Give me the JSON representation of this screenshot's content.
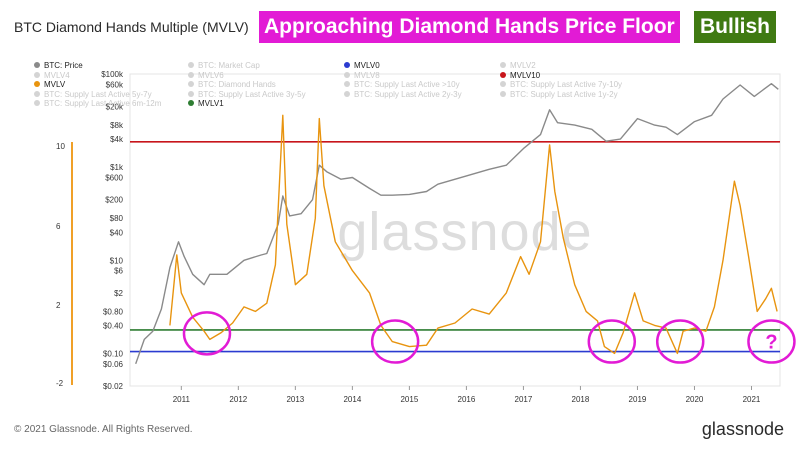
{
  "header": {
    "title": "BTC Diamond Hands Multiple (MVLV)",
    "headline": "Approaching Diamond Hands Price Floor",
    "verdict": "Bullish",
    "headline_color": "#e21bd5",
    "verdict_color": "#3f7a12"
  },
  "footer": {
    "copyright": "© 2021 Glassnode. All Rights Reserved.",
    "brand": "glassnode"
  },
  "chart_data": {
    "type": "line",
    "watermark": "glassnode",
    "x_range": [
      2010.6,
      2022.0
    ],
    "x_ticks": [
      "2011",
      "2012",
      "2013",
      "2014",
      "2015",
      "2016",
      "2017",
      "2018",
      "2019",
      "2020",
      "2021"
    ],
    "y_price_ticks": [
      "$100k",
      "$60k",
      "$20k",
      "$8k",
      "$4k",
      "$1k",
      "$600",
      "$200",
      "$80",
      "$40",
      "$10",
      "$6",
      "$2",
      "$0.80",
      "$0.40",
      "$0.10",
      "$0.06",
      "$0.02"
    ],
    "y_price_range": [
      0.02,
      100000
    ],
    "y_left_ticks": [
      "10",
      "6",
      "2",
      "-2"
    ],
    "legend": [
      {
        "label": "BTC: Price",
        "color": "#8a8a8a",
        "active": true
      },
      {
        "label": "BTC: Market Cap",
        "color": "#cccccc",
        "active": false
      },
      {
        "label": "MVLV0",
        "color": "#2b3bd0",
        "active": true
      },
      {
        "label": "MVLV2",
        "color": "#4caf50",
        "active": false
      },
      {
        "label": "MVLV4",
        "color": "#e6e14a",
        "active": false
      },
      {
        "label": "MVLV6",
        "color": "#f0a64a",
        "active": false
      },
      {
        "label": "MVLV8",
        "color": "#e04040",
        "active": false
      },
      {
        "label": "MVLV10",
        "color": "#c8151b",
        "active": true
      },
      {
        "label": "MVLV",
        "color": "#e8940f",
        "active": true
      },
      {
        "label": "BTC: Diamond Hands",
        "color": "#4fc3f7",
        "active": false
      },
      {
        "label": "BTC: Supply Last Active >10y",
        "color": "#26c6da",
        "active": false
      },
      {
        "label": "BTC: Supply Last Active 7y-10y",
        "color": "#26a69a",
        "active": false
      },
      {
        "label": "BTC: Supply Last Active 5y-7y",
        "color": "#ab47bc",
        "active": false
      },
      {
        "label": "BTC: Supply Last Active 3y-5y",
        "color": "#7e57c2",
        "active": false
      },
      {
        "label": "BTC: Supply Last Active 2y-3y",
        "color": "#ec407a",
        "active": false
      },
      {
        "label": "BTC: Supply Last Active 1y-2y",
        "color": "#ffca28",
        "active": false
      },
      {
        "label": "BTC: Supply Last Active 6m-12m",
        "color": "#ff7043",
        "active": false
      },
      {
        "label": "MVLV1",
        "color": "#2e7d32",
        "active": true
      }
    ],
    "levels": [
      {
        "name": "MVLV10",
        "price_axis_value": 3500,
        "color": "#c8151b"
      },
      {
        "name": "MVLV1",
        "price_axis_value": 0.32,
        "color": "#2e7d32"
      },
      {
        "name": "MVLV0",
        "price_axis_value": 0.11,
        "color": "#2b3bd0"
      }
    ],
    "series": [
      {
        "name": "BTC: Price",
        "color": "#8a8a8a",
        "points": [
          [
            2010.7,
            0.06
          ],
          [
            2010.85,
            0.2
          ],
          [
            2011.0,
            0.3
          ],
          [
            2011.15,
            0.9
          ],
          [
            2011.3,
            7
          ],
          [
            2011.45,
            25
          ],
          [
            2011.55,
            12
          ],
          [
            2011.7,
            5
          ],
          [
            2011.9,
            3
          ],
          [
            2012.0,
            5
          ],
          [
            2012.3,
            5
          ],
          [
            2012.6,
            10
          ],
          [
            2012.9,
            13
          ],
          [
            2013.0,
            14
          ],
          [
            2013.2,
            60
          ],
          [
            2013.28,
            240
          ],
          [
            2013.4,
            90
          ],
          [
            2013.6,
            100
          ],
          [
            2013.8,
            200
          ],
          [
            2013.92,
            1100
          ],
          [
            2014.05,
            800
          ],
          [
            2014.3,
            550
          ],
          [
            2014.5,
            600
          ],
          [
            2014.8,
            350
          ],
          [
            2015.0,
            250
          ],
          [
            2015.2,
            250
          ],
          [
            2015.5,
            260
          ],
          [
            2015.8,
            300
          ],
          [
            2016.0,
            430
          ],
          [
            2016.5,
            650
          ],
          [
            2016.9,
            900
          ],
          [
            2017.2,
            1100
          ],
          [
            2017.5,
            2500
          ],
          [
            2017.8,
            5000
          ],
          [
            2017.96,
            17000
          ],
          [
            2018.1,
            9000
          ],
          [
            2018.4,
            8000
          ],
          [
            2018.7,
            6500
          ],
          [
            2018.95,
            3600
          ],
          [
            2019.2,
            4000
          ],
          [
            2019.5,
            11000
          ],
          [
            2019.8,
            8000
          ],
          [
            2020.0,
            7200
          ],
          [
            2020.2,
            5000
          ],
          [
            2020.5,
            9500
          ],
          [
            2020.8,
            13000
          ],
          [
            2021.0,
            29000
          ],
          [
            2021.3,
            58000
          ],
          [
            2021.55,
            33000
          ],
          [
            2021.85,
            62000
          ],
          [
            2021.97,
            47000
          ]
        ]
      },
      {
        "name": "MVLV",
        "color": "#e8940f",
        "points": [
          [
            2011.3,
            0.4
          ],
          [
            2011.42,
            13
          ],
          [
            2011.5,
            2
          ],
          [
            2011.7,
            0.6
          ],
          [
            2011.9,
            0.3
          ],
          [
            2012.0,
            0.2
          ],
          [
            2012.2,
            0.28
          ],
          [
            2012.4,
            0.45
          ],
          [
            2012.6,
            1.0
          ],
          [
            2012.8,
            0.8
          ],
          [
            2013.0,
            1.2
          ],
          [
            2013.15,
            8
          ],
          [
            2013.28,
            13000
          ],
          [
            2013.35,
            60
          ],
          [
            2013.5,
            3
          ],
          [
            2013.7,
            5
          ],
          [
            2013.85,
            80
          ],
          [
            2013.92,
            11000
          ],
          [
            2014.0,
            400
          ],
          [
            2014.2,
            25
          ],
          [
            2014.5,
            6
          ],
          [
            2014.8,
            2
          ],
          [
            2015.0,
            0.4
          ],
          [
            2015.2,
            0.18
          ],
          [
            2015.5,
            0.14
          ],
          [
            2015.8,
            0.15
          ],
          [
            2016.0,
            0.35
          ],
          [
            2016.3,
            0.45
          ],
          [
            2016.6,
            0.9
          ],
          [
            2016.9,
            0.7
          ],
          [
            2017.2,
            2
          ],
          [
            2017.45,
            12
          ],
          [
            2017.6,
            5
          ],
          [
            2017.8,
            25
          ],
          [
            2017.96,
            3000
          ],
          [
            2018.05,
            300
          ],
          [
            2018.2,
            30
          ],
          [
            2018.4,
            3
          ],
          [
            2018.6,
            0.8
          ],
          [
            2018.8,
            0.5
          ],
          [
            2018.92,
            0.14
          ],
          [
            2019.1,
            0.1
          ],
          [
            2019.25,
            0.28
          ],
          [
            2019.45,
            2
          ],
          [
            2019.6,
            0.5
          ],
          [
            2019.8,
            0.4
          ],
          [
            2020.0,
            0.35
          ],
          [
            2020.2,
            0.1
          ],
          [
            2020.3,
            0.3
          ],
          [
            2020.5,
            0.35
          ],
          [
            2020.7,
            0.3
          ],
          [
            2020.85,
            1
          ],
          [
            2021.0,
            10
          ],
          [
            2021.2,
            500
          ],
          [
            2021.3,
            150
          ],
          [
            2021.45,
            12
          ],
          [
            2021.6,
            0.8
          ],
          [
            2021.75,
            1.5
          ],
          [
            2021.85,
            2.5
          ],
          [
            2021.95,
            0.8
          ]
        ]
      }
    ],
    "annotations": [
      {
        "type": "circle",
        "x": 2011.95,
        "y": 0.27
      },
      {
        "type": "circle",
        "x": 2015.25,
        "y": 0.18
      },
      {
        "type": "circle",
        "x": 2019.05,
        "y": 0.18
      },
      {
        "type": "circle",
        "x": 2020.25,
        "y": 0.18
      },
      {
        "type": "circle-question",
        "x": 2021.85,
        "y": 0.18,
        "text": "?"
      }
    ]
  }
}
